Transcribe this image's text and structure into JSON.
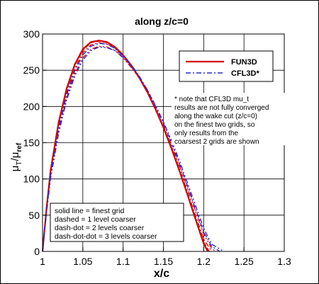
{
  "chart_data": {
    "type": "line",
    "title": "along z/c=0",
    "xlabel": "x/c",
    "ylabel_main": "μ",
    "ylabel_main_sub": "T",
    "ylabel_sep": "/",
    "ylabel_ref": "μ",
    "ylabel_ref_sub": "ref",
    "xlim": [
      1.0,
      1.3
    ],
    "ylim": [
      0,
      300
    ],
    "xticks": [
      "1",
      "1.05",
      "1.1",
      "1.15",
      "1.2",
      "1.25",
      "1.3"
    ],
    "xtick_values": [
      1.0,
      1.05,
      1.1,
      1.15,
      1.2,
      1.25,
      1.3
    ],
    "yticks": [
      "0",
      "50",
      "100",
      "150",
      "200",
      "250",
      "300"
    ],
    "ytick_values": [
      0,
      50,
      100,
      150,
      200,
      250,
      300
    ],
    "grid": true,
    "legend_placement": "top-right",
    "legend": [
      {
        "name": "FUN3D",
        "color": "#d40000",
        "style": "solid"
      },
      {
        "name": "CFL3D*",
        "color": "#2a2ad8",
        "style": "dashdot"
      }
    ],
    "note_lines": [
      "* note that CFL3D mu_t",
      "results are not fully converged",
      "along the wake cut (z/c=0)",
      "on the finest two grids, so",
      "only results from the",
      "coarsest 2 grids are shown"
    ],
    "style_key_lines": [
      "solid line = finest grid",
      "dashed = 1 level coarser",
      "dash-dot = 2 levels coarser",
      "dash-dot-dot = 3 levels coarser"
    ],
    "series": [
      {
        "name": "FUN3D",
        "color": "#d40000",
        "dash": "",
        "width": 2.2,
        "x": [
          1.0,
          1.005,
          1.01,
          1.02,
          1.03,
          1.04,
          1.05,
          1.06,
          1.07,
          1.08,
          1.09,
          1.1,
          1.11,
          1.12,
          1.13,
          1.14,
          1.15,
          1.16,
          1.17,
          1.18,
          1.19,
          1.2,
          1.205
        ],
        "y": [
          0,
          60,
          112,
          178,
          225,
          258,
          279,
          289,
          291,
          289,
          282,
          271,
          257,
          240,
          220,
          197,
          171,
          142,
          111,
          78,
          44,
          11,
          0
        ]
      },
      {
        "name": "FUN3D",
        "color": "#d40000",
        "dash": "6,3",
        "width": 1.3,
        "x": [
          1.0,
          1.005,
          1.01,
          1.02,
          1.03,
          1.04,
          1.05,
          1.06,
          1.07,
          1.08,
          1.09,
          1.1,
          1.11,
          1.12,
          1.13,
          1.14,
          1.15,
          1.16,
          1.17,
          1.18,
          1.19,
          1.2,
          1.207
        ],
        "y": [
          0,
          59,
          110,
          176,
          223,
          256,
          277,
          288,
          290,
          288,
          281,
          270,
          256,
          239,
          219,
          196,
          170,
          141,
          111,
          78,
          45,
          13,
          0
        ]
      },
      {
        "name": "FUN3D",
        "color": "#d40000",
        "dash": "7,3,2,3",
        "width": 1.3,
        "x": [
          1.0,
          1.005,
          1.01,
          1.02,
          1.03,
          1.04,
          1.05,
          1.06,
          1.07,
          1.08,
          1.09,
          1.1,
          1.11,
          1.12,
          1.13,
          1.14,
          1.15,
          1.16,
          1.17,
          1.18,
          1.19,
          1.2,
          1.21
        ],
        "y": [
          0,
          57,
          107,
          172,
          219,
          252,
          274,
          285,
          288,
          286,
          280,
          269,
          255,
          239,
          219,
          197,
          172,
          144,
          114,
          82,
          49,
          17,
          0
        ]
      },
      {
        "name": "FUN3D",
        "color": "#d40000",
        "dash": "7,3,2,3,2,3",
        "width": 1.3,
        "x": [
          1.0,
          1.005,
          1.01,
          1.02,
          1.03,
          1.04,
          1.05,
          1.06,
          1.07,
          1.08,
          1.09,
          1.1,
          1.11,
          1.12,
          1.13,
          1.14,
          1.15,
          1.16,
          1.17,
          1.18,
          1.19,
          1.2,
          1.21,
          1.215
        ],
        "y": [
          0,
          55,
          103,
          166,
          212,
          245,
          267,
          279,
          283,
          282,
          277,
          267,
          254,
          239,
          220,
          198,
          174,
          147,
          118,
          87,
          55,
          24,
          4,
          0
        ]
      },
      {
        "name": "CFL3D*",
        "color": "#2a2ad8",
        "dash": "7,3,2,3",
        "width": 1.4,
        "x": [
          1.0,
          1.005,
          1.01,
          1.02,
          1.03,
          1.04,
          1.05,
          1.06,
          1.07,
          1.08,
          1.09,
          1.1,
          1.11,
          1.12,
          1.13,
          1.14,
          1.15,
          1.16,
          1.17,
          1.18,
          1.19,
          1.2,
          1.21,
          1.22
        ],
        "y": [
          0,
          56,
          105,
          169,
          216,
          249,
          271,
          283,
          287,
          286,
          280,
          270,
          258,
          242,
          223,
          201,
          177,
          150,
          121,
          90,
          58,
          27,
          7,
          0
        ]
      },
      {
        "name": "CFL3D*",
        "color": "#2a2ad8",
        "dash": "7,3,2,3,2,3",
        "width": 1.4,
        "x": [
          1.0,
          1.005,
          1.01,
          1.02,
          1.03,
          1.04,
          1.05,
          1.06,
          1.07,
          1.08,
          1.09,
          1.1,
          1.11,
          1.12,
          1.13,
          1.14,
          1.15,
          1.16,
          1.17,
          1.18,
          1.19,
          1.2,
          1.21,
          1.225
        ],
        "y": [
          0,
          54,
          101,
          163,
          209,
          242,
          264,
          277,
          282,
          281,
          277,
          268,
          256,
          241,
          223,
          202,
          179,
          153,
          125,
          94,
          63,
          32,
          10,
          0
        ]
      }
    ]
  }
}
